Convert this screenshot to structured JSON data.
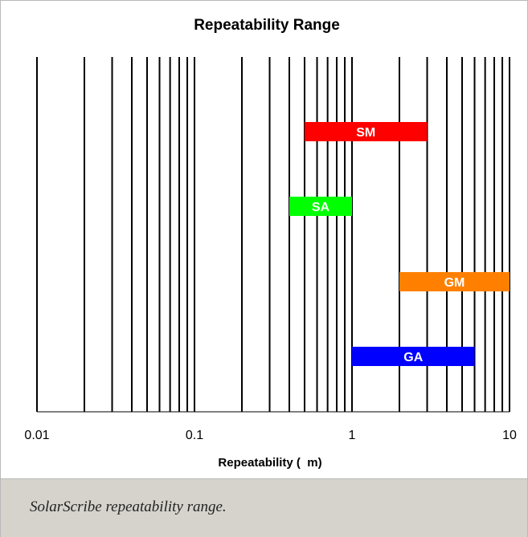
{
  "chart_data": {
    "type": "bar",
    "orientation": "horizontal-range",
    "title": "Repeatability Range",
    "xlabel": "Repeatability (  m)",
    "xscale": "log",
    "xlim": [
      0.01,
      10
    ],
    "x_tick_labels": [
      "0.01",
      "0.1",
      "1",
      "10"
    ],
    "x_tick_values": [
      0.01,
      0.1,
      1,
      10
    ],
    "grid": "vertical minor and major lines",
    "ranges": [
      {
        "label": "SM",
        "min": 0.5,
        "max": 3,
        "color": "#ff0000"
      },
      {
        "label": "SA",
        "min": 0.4,
        "max": 1,
        "color": "#00ff00"
      },
      {
        "label": "GM",
        "min": 2,
        "max": 10,
        "color": "#ff8000"
      },
      {
        "label": "GA",
        "min": 1,
        "max": 6,
        "color": "#0000ff"
      }
    ]
  },
  "caption": "SolarScribe repeatability range."
}
